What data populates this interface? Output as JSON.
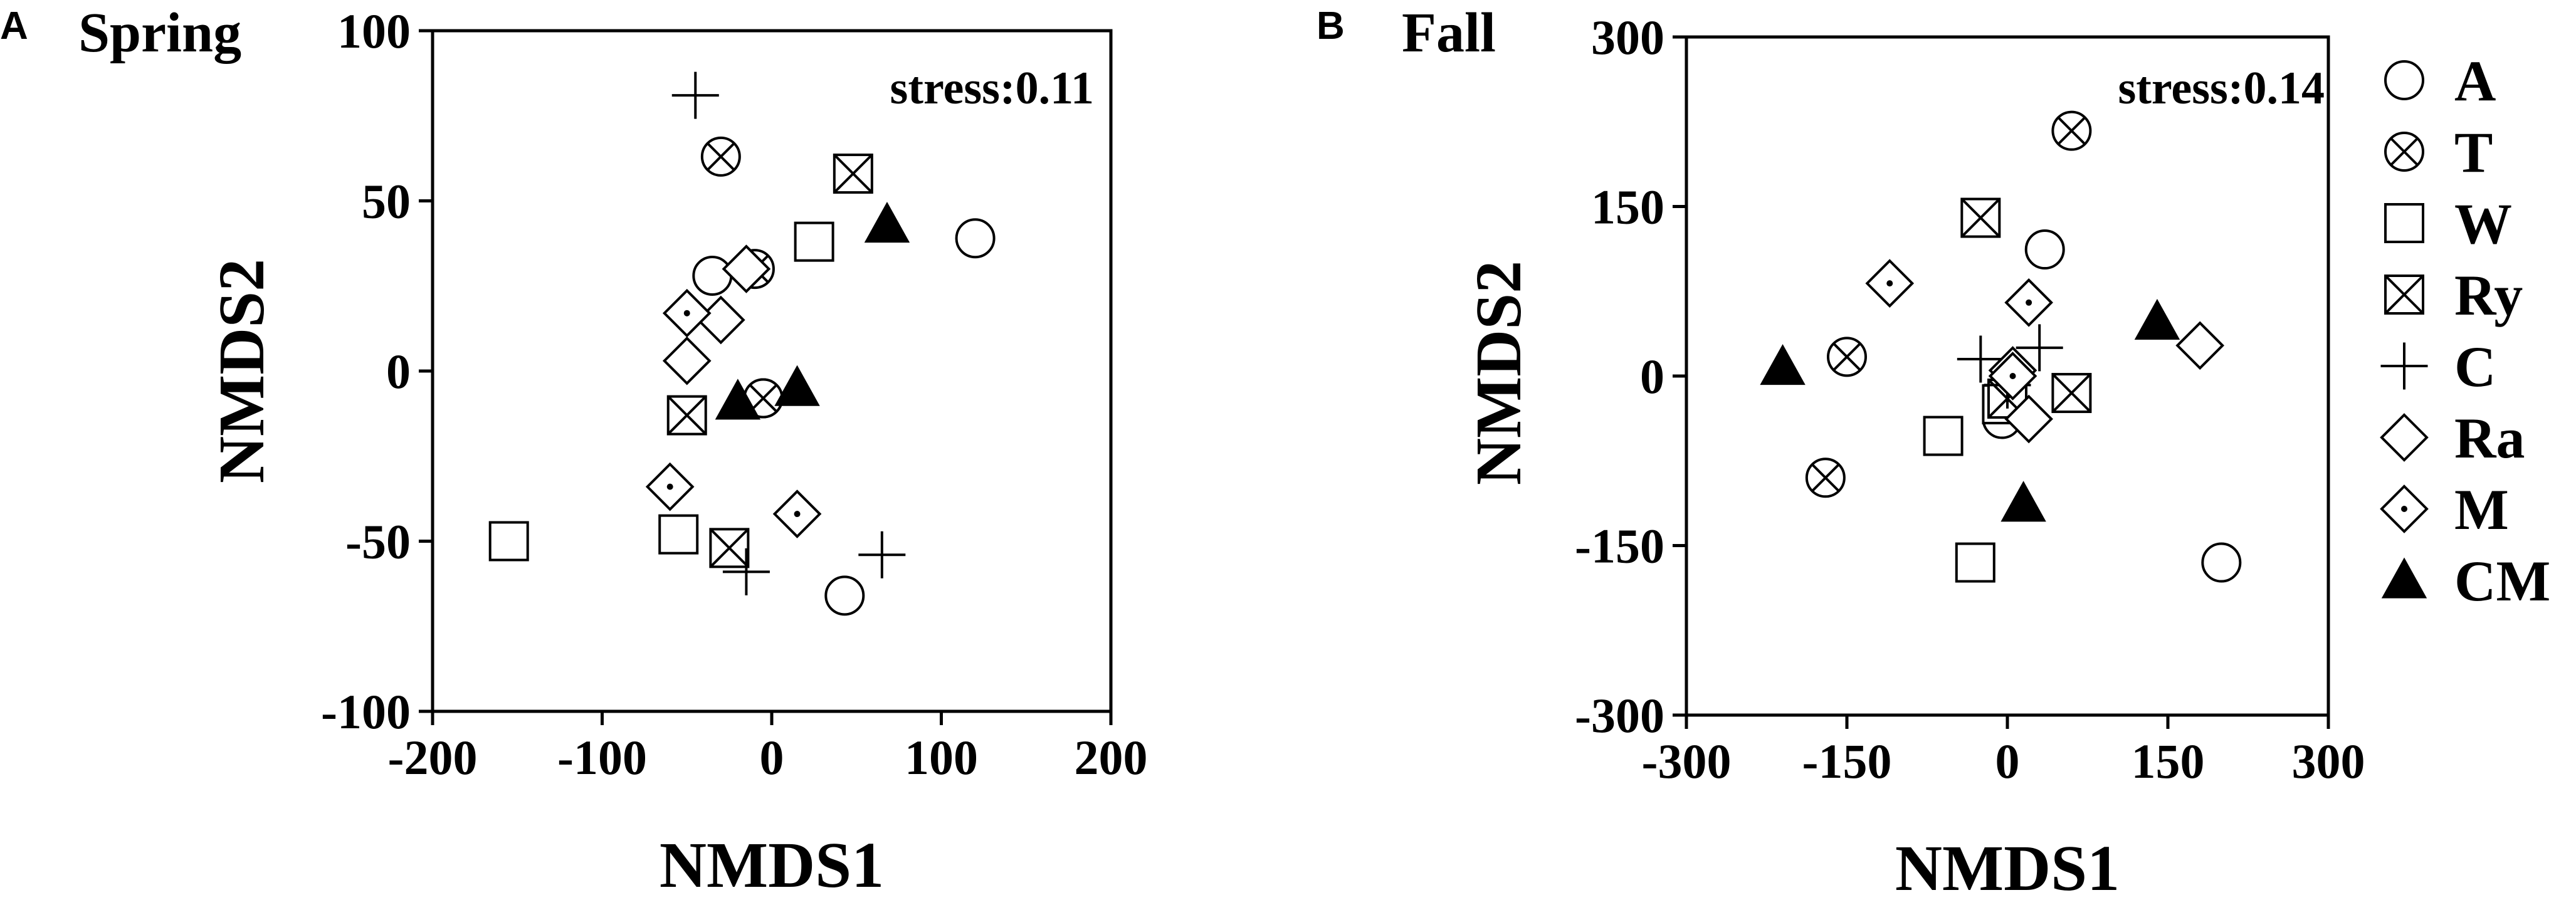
{
  "chart_data": [
    {
      "type": "scatter",
      "panel_label": "A",
      "title": "Spring",
      "annotation": "stress:0.11",
      "xlabel": "NMDS1",
      "ylabel": "NMDS2",
      "xlim": [
        -200,
        200
      ],
      "ylim": [
        -100,
        100
      ],
      "xticks": [
        "-200",
        "-100",
        "0",
        "100",
        "200"
      ],
      "yticks": [
        "100",
        "50",
        "0",
        "-50",
        "-100"
      ],
      "series": [
        {
          "name": "A",
          "marker": "circle",
          "points": [
            [
              -35,
              28
            ],
            [
              120,
              39
            ],
            [
              -5,
              -8
            ],
            [
              43,
              -66
            ]
          ]
        },
        {
          "name": "T",
          "marker": "circle-x",
          "points": [
            [
              -30,
              63
            ],
            [
              -10,
              30
            ],
            [
              -5,
              -8
            ]
          ]
        },
        {
          "name": "W",
          "marker": "square",
          "points": [
            [
              25,
              38
            ],
            [
              -155,
              -50
            ],
            [
              -55,
              -48
            ]
          ]
        },
        {
          "name": "Ry",
          "marker": "square-x",
          "points": [
            [
              48,
              58
            ],
            [
              -50,
              -13
            ],
            [
              -25,
              -52
            ]
          ]
        },
        {
          "name": "C",
          "marker": "plus",
          "points": [
            [
              -45,
              81
            ],
            [
              -15,
              -59
            ],
            [
              65,
              -54
            ]
          ]
        },
        {
          "name": "Ra",
          "marker": "diamond",
          "points": [
            [
              -30,
              15
            ],
            [
              -50,
              3
            ],
            [
              -15,
              30
            ]
          ]
        },
        {
          "name": "M",
          "marker": "diamond-dot",
          "points": [
            [
              -50,
              17
            ],
            [
              -60,
              -34
            ],
            [
              15,
              -42
            ]
          ]
        },
        {
          "name": "CM",
          "marker": "filled-triangle",
          "points": [
            [
              68,
              43
            ],
            [
              -20,
              -9
            ],
            [
              15,
              -5
            ]
          ]
        }
      ]
    },
    {
      "type": "scatter",
      "panel_label": "B",
      "title": "Fall",
      "annotation": "stress:0.14",
      "xlabel": "NMDS1",
      "ylabel": "NMDS2",
      "xlim": [
        -300,
        300
      ],
      "ylim": [
        -300,
        300
      ],
      "xticks": [
        "-300",
        "-150",
        "0",
        "150",
        "300"
      ],
      "yticks": [
        "300",
        "150",
        "0",
        "-150",
        "-300"
      ],
      "series": [
        {
          "name": "A",
          "marker": "circle",
          "points": [
            [
              35,
              112
            ],
            [
              -5,
              -38
            ],
            [
              200,
              -165
            ]
          ]
        },
        {
          "name": "T",
          "marker": "circle-x",
          "points": [
            [
              60,
              217
            ],
            [
              -150,
              17
            ],
            [
              -170,
              -90
            ]
          ]
        },
        {
          "name": "W",
          "marker": "square",
          "points": [
            [
              -60,
              -53
            ],
            [
              -30,
              -165
            ],
            [
              -5,
              -25
            ]
          ]
        },
        {
          "name": "Ry",
          "marker": "square-x",
          "points": [
            [
              -25,
              140
            ],
            [
              60,
              -15
            ],
            [
              0,
              -20
            ]
          ]
        },
        {
          "name": "C",
          "marker": "plus",
          "points": [
            [
              -25,
              15
            ],
            [
              30,
              25
            ],
            [
              0,
              -8
            ]
          ]
        },
        {
          "name": "Ra",
          "marker": "diamond",
          "points": [
            [
              5,
              5
            ],
            [
              20,
              -38
            ],
            [
              180,
              27
            ]
          ]
        },
        {
          "name": "M",
          "marker": "diamond-dot",
          "points": [
            [
              -110,
              82
            ],
            [
              20,
              65
            ],
            [
              5,
              0
            ]
          ]
        },
        {
          "name": "CM",
          "marker": "filled-triangle",
          "points": [
            [
              -210,
              8
            ],
            [
              15,
              -113
            ],
            [
              140,
              48
            ]
          ]
        }
      ]
    }
  ],
  "legend": [
    {
      "label": "A",
      "marker": "circle"
    },
    {
      "label": "T",
      "marker": "circle-x"
    },
    {
      "label": "W",
      "marker": "square"
    },
    {
      "label": "Ry",
      "marker": "square-x"
    },
    {
      "label": "C",
      "marker": "plus"
    },
    {
      "label": "Ra",
      "marker": "diamond"
    },
    {
      "label": "M",
      "marker": "diamond-dot"
    },
    {
      "label": "CM",
      "marker": "filled-triangle"
    }
  ]
}
